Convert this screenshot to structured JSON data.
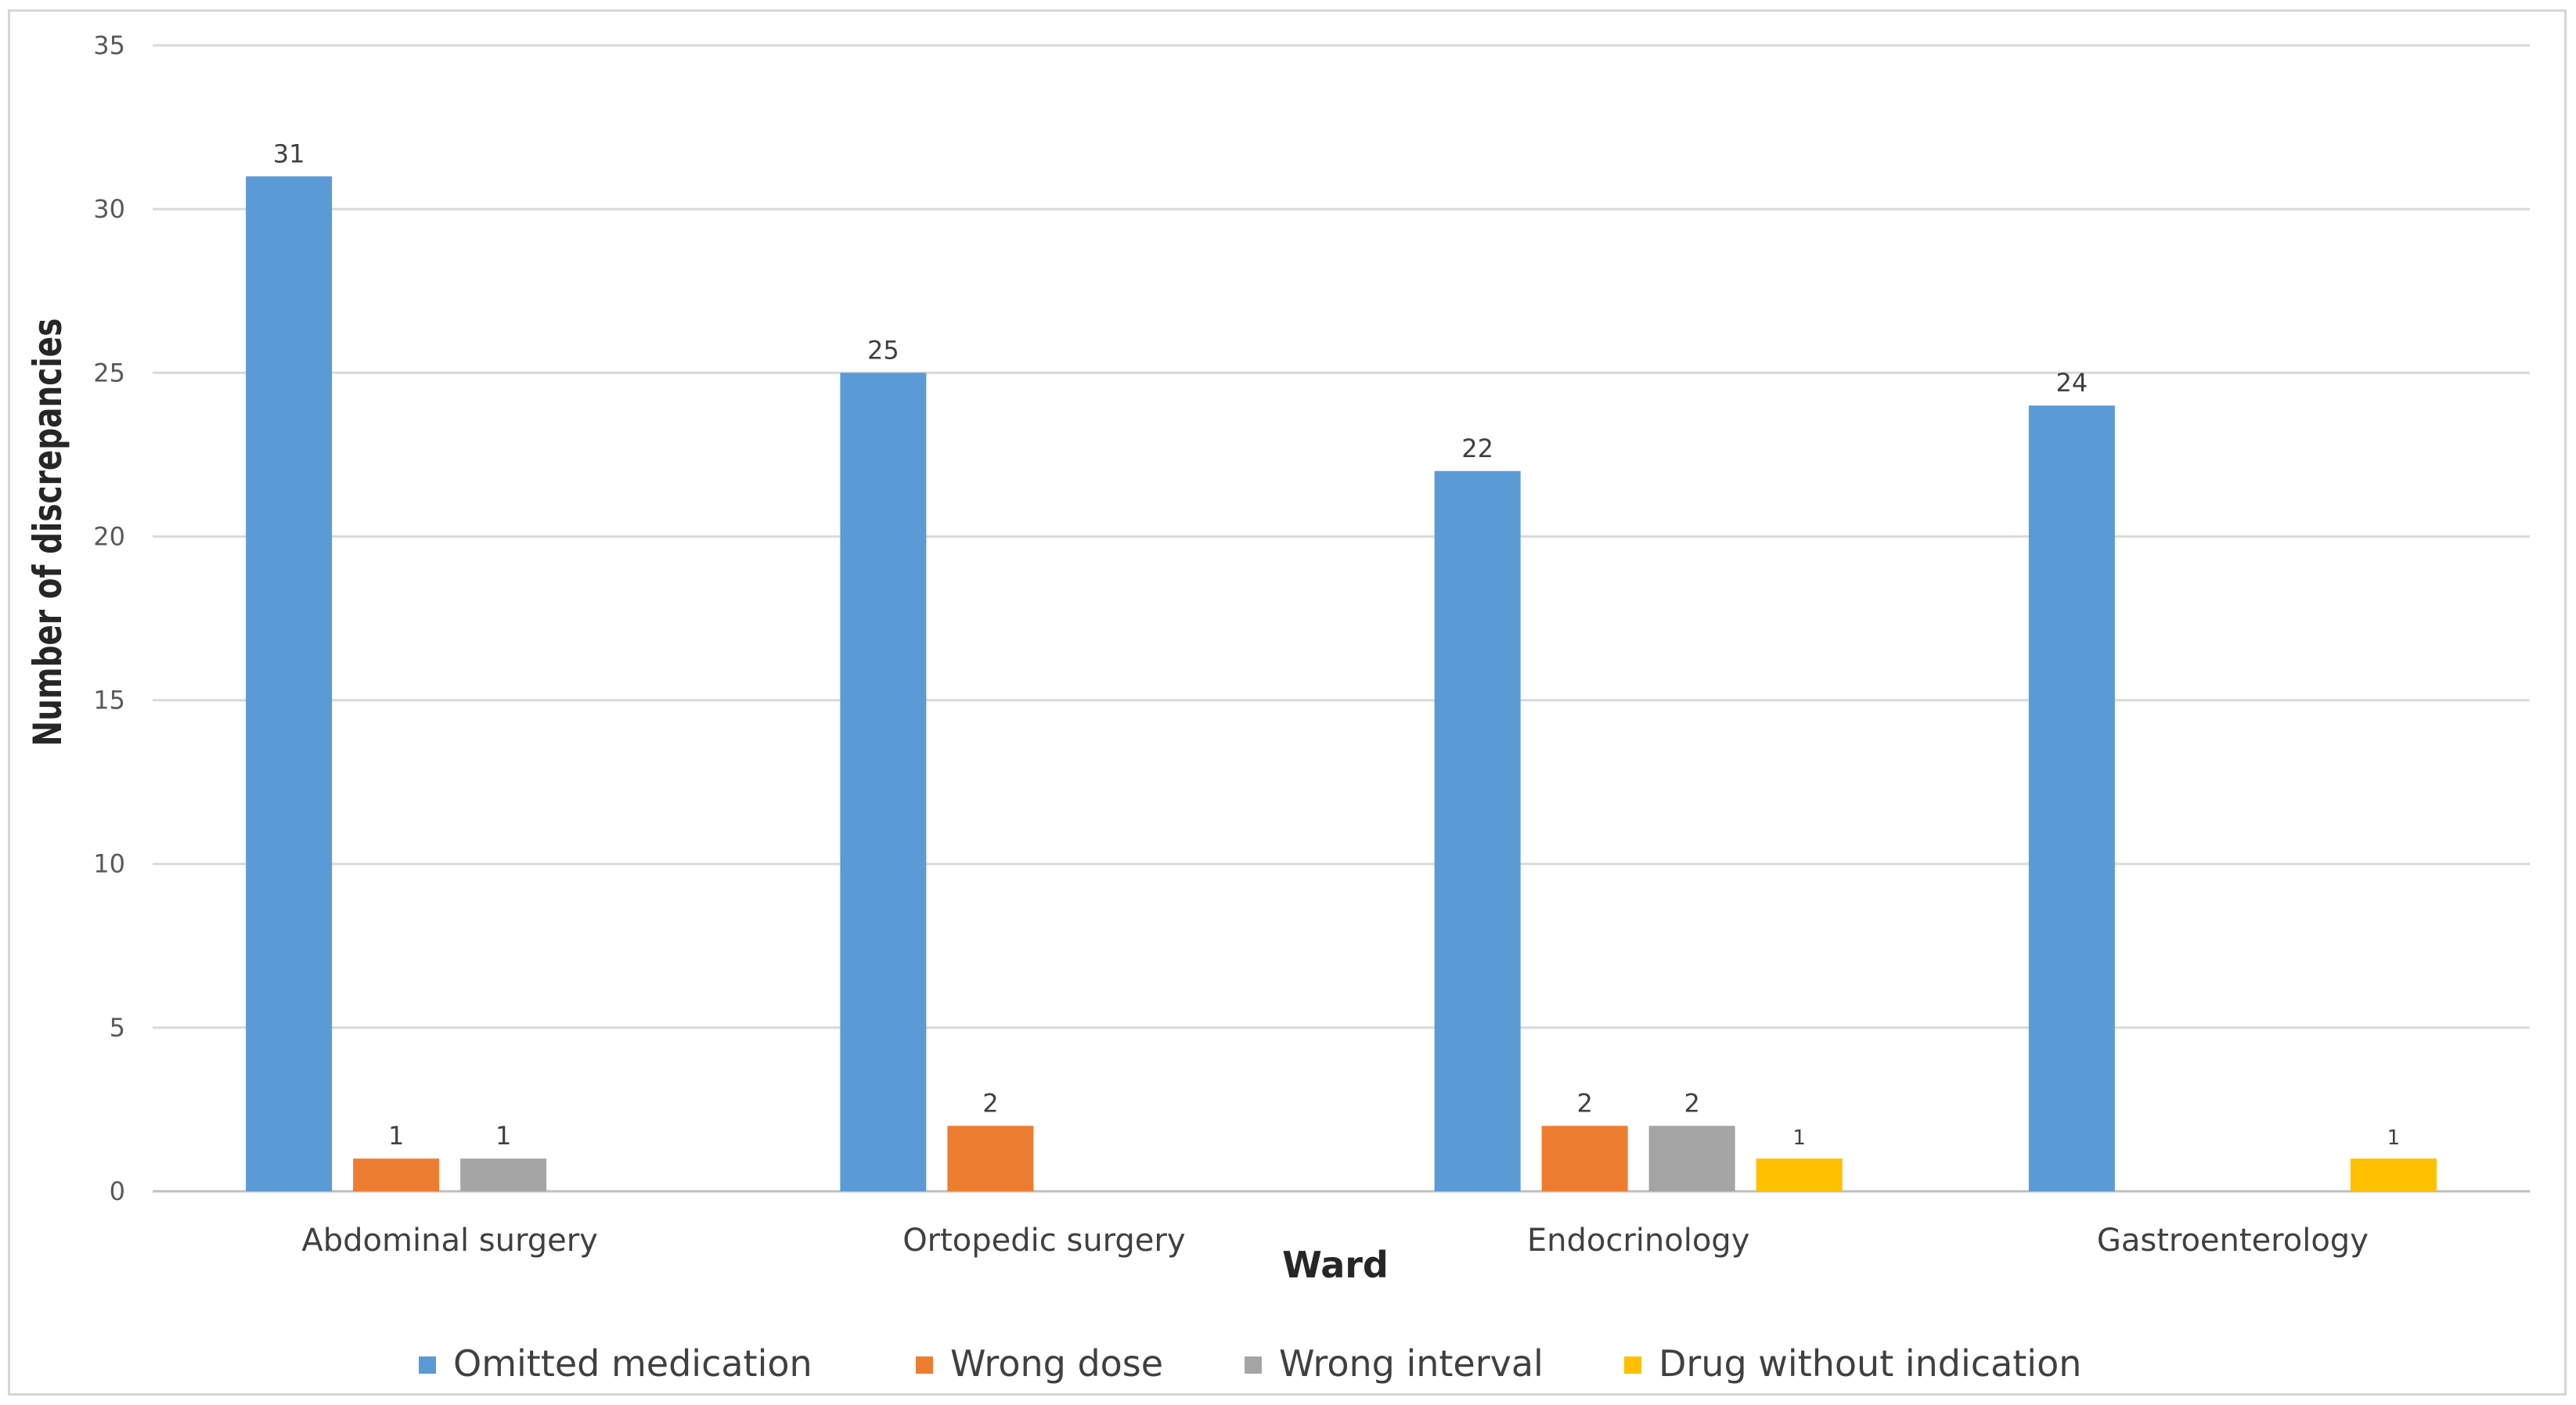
{
  "chart_data": {
    "type": "bar",
    "title": "",
    "xlabel": "Ward",
    "ylabel": "Number of discrepancies",
    "ylim": [
      0,
      35
    ],
    "yticks": [
      0,
      5,
      10,
      15,
      20,
      25,
      30,
      35
    ],
    "grid": true,
    "legend_position": "bottom",
    "categories": [
      "Abdominal surgery",
      "Ortopedic surgery",
      "Endocrinology",
      "Gastroenterology"
    ],
    "series": [
      {
        "name": "Omitted medication",
        "color": "#5b9bd5",
        "values": [
          31,
          25,
          22,
          24
        ]
      },
      {
        "name": "Wrong dose",
        "color": "#ed7d31",
        "values": [
          1,
          2,
          2,
          null
        ]
      },
      {
        "name": "Wrong interval",
        "color": "#a5a5a5",
        "values": [
          1,
          null,
          2,
          null
        ]
      },
      {
        "name": "Drug without indication",
        "color": "#ffc000",
        "values": [
          null,
          null,
          1,
          1
        ]
      }
    ]
  }
}
